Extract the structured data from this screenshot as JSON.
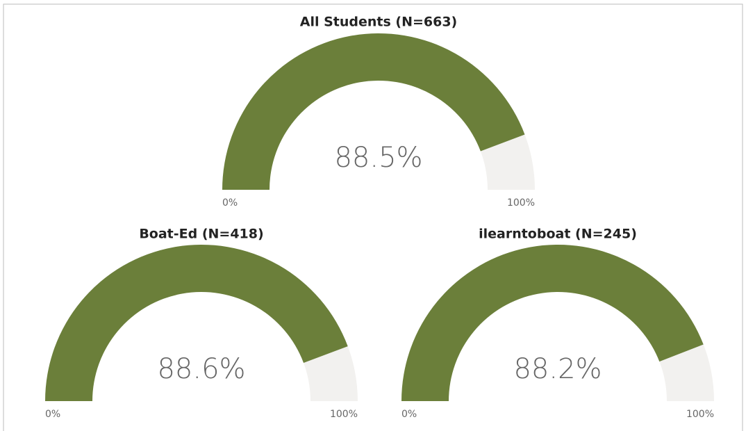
{
  "chart_data": [
    {
      "type": "gauge",
      "title": "All Students (N=663)",
      "values": [
        88.5
      ],
      "value_labels": [
        "88.5%"
      ],
      "color": "#6b7f3a",
      "track_color": "#f2f1ef",
      "ylim": [
        0,
        100
      ],
      "yticks": [
        {
          "value": 0,
          "label": "0%"
        },
        {
          "value": 100,
          "label": "100%"
        }
      ]
    },
    {
      "type": "gauge",
      "title": "Boat-Ed (N=418)",
      "values": [
        88.6
      ],
      "value_labels": [
        "88.6%"
      ],
      "color": "#6b7f3a",
      "track_color": "#f2f1ef",
      "ylim": [
        0,
        100
      ],
      "yticks": [
        {
          "value": 0,
          "label": "0%"
        },
        {
          "value": 100,
          "label": "100%"
        }
      ]
    },
    {
      "type": "gauge",
      "title": "ilearntoboat (N=245)",
      "values": [
        88.2
      ],
      "value_labels": [
        "88.2%"
      ],
      "color": "#6b7f3a",
      "track_color": "#f2f1ef",
      "ylim": [
        0,
        100
      ],
      "yticks": [
        {
          "value": 0,
          "label": "0%"
        },
        {
          "value": 100,
          "label": "100%"
        }
      ]
    }
  ]
}
